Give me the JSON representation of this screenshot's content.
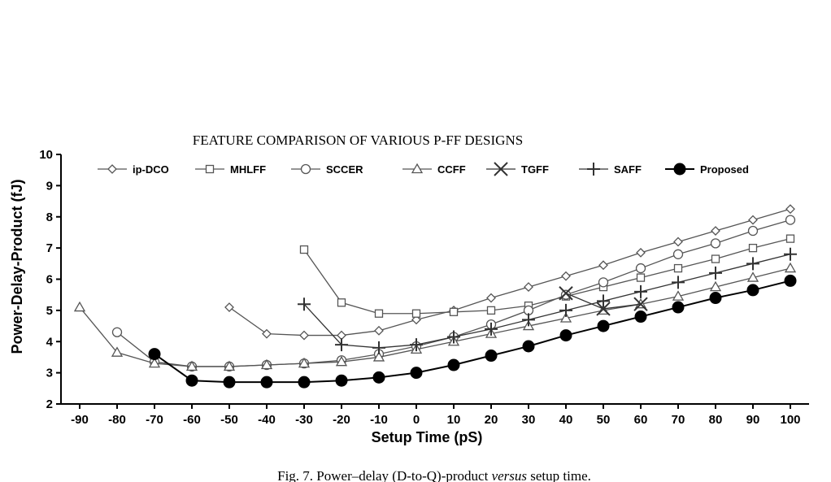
{
  "header": "FEATURE COMPARISON OF VARIOUS P-FF DESIGNS",
  "caption": {
    "prefix": "Fig. 7. Power–delay (D-to-Q)-product ",
    "italic": "versus",
    "suffix": " setup time."
  },
  "chart_data": {
    "type": "line",
    "title": "",
    "xlabel": "Setup Time (pS)",
    "ylabel": "Power-Delay-Product (fJ)",
    "xlim": [
      -90,
      100
    ],
    "ylim": [
      2,
      10
    ],
    "xticks": [
      -90,
      -80,
      -70,
      -60,
      -50,
      -40,
      -30,
      -20,
      -10,
      0,
      10,
      20,
      30,
      40,
      50,
      60,
      70,
      80,
      90,
      100
    ],
    "yticks": [
      2,
      3,
      4,
      5,
      6,
      7,
      8,
      9,
      10
    ],
    "grid": false,
    "legend_position": "top",
    "series": [
      {
        "name": "ip-DCO",
        "marker": "diamond",
        "color": "#555555",
        "x": [
          -50,
          -40,
          -30,
          -20,
          -10,
          0,
          10,
          20,
          30,
          40,
          50,
          60,
          70,
          80,
          90,
          100
        ],
        "y": [
          5.1,
          4.25,
          4.2,
          4.2,
          4.35,
          4.7,
          5.0,
          5.4,
          5.75,
          6.1,
          6.45,
          6.85,
          7.2,
          7.55,
          7.9,
          8.25
        ]
      },
      {
        "name": "MHLFF",
        "marker": "square",
        "color": "#555555",
        "x": [
          -30,
          -20,
          -10,
          0,
          10,
          20,
          30,
          40,
          50,
          60,
          70,
          80,
          90,
          100
        ],
        "y": [
          6.95,
          5.25,
          4.9,
          4.9,
          4.95,
          5.0,
          5.15,
          5.45,
          5.75,
          6.05,
          6.35,
          6.65,
          7.0,
          7.3
        ]
      },
      {
        "name": "SCCER",
        "marker": "circle",
        "color": "#555555",
        "x": [
          -80,
          -70,
          -60,
          -50,
          -40,
          -30,
          -20,
          -10,
          0,
          10,
          20,
          30,
          40,
          50,
          60,
          70,
          80,
          90,
          100
        ],
        "y": [
          4.3,
          3.35,
          3.2,
          3.2,
          3.25,
          3.3,
          3.4,
          3.6,
          3.85,
          4.15,
          4.55,
          5.0,
          5.5,
          5.9,
          6.35,
          6.8,
          7.15,
          7.55,
          7.9
        ]
      },
      {
        "name": "CCFF",
        "marker": "triangle",
        "color": "#555555",
        "x": [
          -90,
          -80,
          -70,
          -60,
          -50,
          -40,
          -30,
          -20,
          -10,
          0,
          10,
          20,
          30,
          40,
          50,
          60,
          70,
          80,
          90,
          100
        ],
        "y": [
          5.1,
          3.65,
          3.3,
          3.2,
          3.2,
          3.25,
          3.3,
          3.35,
          3.5,
          3.75,
          4.0,
          4.25,
          4.5,
          4.75,
          5.0,
          5.2,
          5.45,
          5.75,
          6.05,
          6.35
        ]
      },
      {
        "name": "TGFF",
        "marker": "x",
        "color": "#333333",
        "x": [
          40,
          50,
          60
        ],
        "y": [
          5.55,
          5.05,
          5.2
        ]
      },
      {
        "name": "SAFF",
        "marker": "plus",
        "color": "#333333",
        "x": [
          -30,
          -20,
          -10,
          0,
          10,
          20,
          30,
          40,
          50,
          60,
          70,
          80,
          90,
          100
        ],
        "y": [
          5.2,
          3.9,
          3.8,
          3.9,
          4.15,
          4.4,
          4.7,
          5.0,
          5.3,
          5.6,
          5.9,
          6.2,
          6.5,
          6.8
        ]
      },
      {
        "name": "Proposed",
        "marker": "filled-circle",
        "color": "#000000",
        "x": [
          -70,
          -60,
          -50,
          -40,
          -30,
          -20,
          -10,
          0,
          10,
          20,
          30,
          40,
          50,
          60,
          70,
          80,
          90,
          100
        ],
        "y": [
          3.6,
          2.75,
          2.7,
          2.7,
          2.7,
          2.75,
          2.85,
          3.0,
          3.25,
          3.55,
          3.85,
          4.2,
          4.5,
          4.8,
          5.1,
          5.4,
          5.65,
          5.95
        ]
      }
    ]
  }
}
